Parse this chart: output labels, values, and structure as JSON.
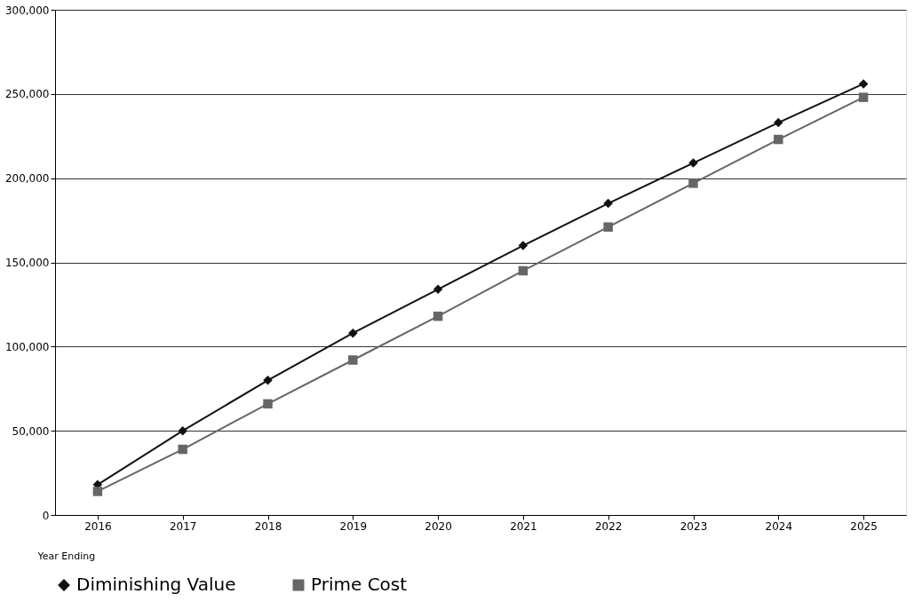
{
  "chart_data": {
    "type": "line",
    "xlabel": "Year Ending",
    "categories": [
      "2016",
      "2017",
      "2018",
      "2019",
      "2020",
      "2021",
      "2022",
      "2023",
      "2024",
      "2025"
    ],
    "series": [
      {
        "name": "Diminishing Value",
        "color": "#111111",
        "marker": "diamond",
        "values": [
          18000,
          50000,
          80000,
          108000,
          134000,
          160000,
          185000,
          209000,
          233000,
          256000
        ]
      },
      {
        "name": "Prime Cost",
        "color": "#666666",
        "marker": "square",
        "values": [
          14000,
          39000,
          66000,
          92000,
          118000,
          145000,
          171000,
          197000,
          223000,
          248000
        ]
      }
    ],
    "ylim": [
      0,
      300000
    ],
    "yticks": [
      0,
      {
        "value": 50000,
        "label": "50,000"
      },
      {
        "value": 100000,
        "label": "100,000"
      },
      {
        "value": 150000,
        "label": "150,000"
      },
      {
        "value": 200000,
        "label": "200,000"
      },
      {
        "value": 250000,
        "label": "250,000"
      },
      {
        "value": 300000,
        "label": "300,000"
      }
    ],
    "grid": "y",
    "legend": "bottom",
    "line_style": "solid"
  }
}
